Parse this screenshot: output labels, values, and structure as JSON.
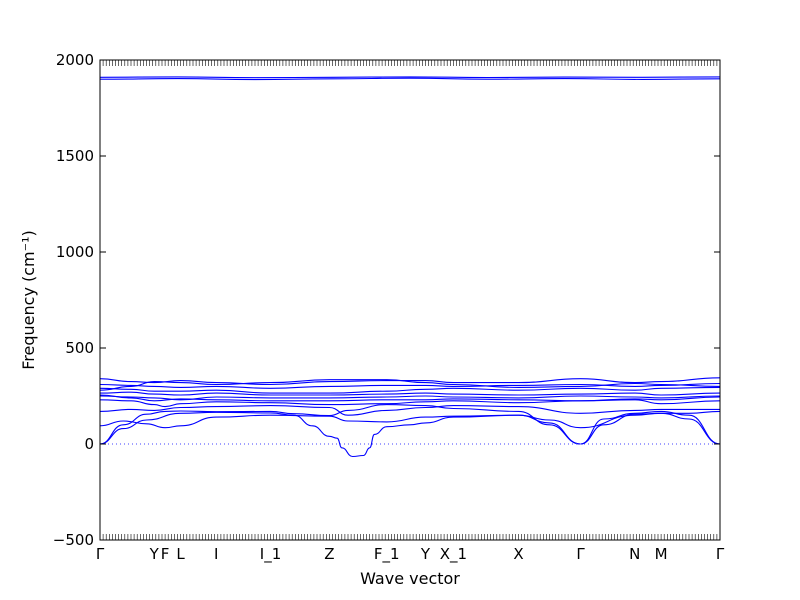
{
  "chart_data": {
    "type": "line",
    "title": "",
    "xlabel": "Wave vector",
    "ylabel": "Frequency (cm⁻¹)",
    "ylim": [
      -500,
      2000
    ],
    "yticks": [
      -500,
      0,
      500,
      1000,
      1500,
      2000
    ],
    "ytick_labels": [
      "−500",
      "0",
      "500",
      "1000",
      "1500",
      "2000"
    ],
    "grid": false,
    "legend": "none",
    "line_color": "#0000ff",
    "zero_line_color": "#4040ff",
    "x_range": [
      0,
      40
    ],
    "high_points": [
      {
        "label": "Γ",
        "x": 0
      },
      {
        "label": "Y",
        "x": 3.5
      },
      {
        "label": "F",
        "x": 4.2
      },
      {
        "label": "L",
        "x": 5.2
      },
      {
        "label": "I",
        "x": 7.5
      },
      {
        "label": "I_1",
        "x": 11.0
      },
      {
        "label": "Z",
        "x": 14.8
      },
      {
        "label": "F_1",
        "x": 18.5
      },
      {
        "label": "Y",
        "x": 21.0
      },
      {
        "label": "X_1",
        "x": 22.8
      },
      {
        "label": "X",
        "x": 27.0
      },
      {
        "label": "Γ",
        "x": 31.0
      },
      {
        "label": "N",
        "x": 34.5
      },
      {
        "label": "M",
        "x": 36.2
      },
      {
        "label": "Γ",
        "x": 40.0
      }
    ],
    "series": [
      {
        "values": [
          [
            0,
            1910
          ],
          [
            5,
            1912
          ],
          [
            10,
            1908
          ],
          [
            15,
            1910
          ],
          [
            20,
            1912
          ],
          [
            25,
            1909
          ],
          [
            30,
            1911
          ],
          [
            35,
            1910
          ],
          [
            40,
            1912
          ]
        ]
      },
      {
        "values": [
          [
            0,
            1900
          ],
          [
            5,
            1903
          ],
          [
            10,
            1898
          ],
          [
            15,
            1902
          ],
          [
            20,
            1905
          ],
          [
            25,
            1900
          ],
          [
            30,
            1903
          ],
          [
            35,
            1899
          ],
          [
            40,
            1902
          ]
        ]
      },
      {
        "values": [
          [
            0,
            0
          ],
          [
            1.5,
            80
          ],
          [
            3,
            125
          ],
          [
            5.2,
            160
          ],
          [
            7.5,
            165
          ],
          [
            11,
            162
          ],
          [
            12.5,
            150
          ],
          [
            13.7,
            95
          ],
          [
            14.8,
            40
          ],
          [
            15.3,
            30
          ],
          [
            15.6,
            -20
          ],
          [
            16.3,
            -65
          ],
          [
            17.0,
            -60
          ],
          [
            17.4,
            -20
          ],
          [
            17.7,
            50
          ],
          [
            18.5,
            90
          ],
          [
            20,
            100
          ],
          [
            21,
            110
          ],
          [
            22.8,
            140
          ],
          [
            27,
            150
          ],
          [
            29,
            110
          ],
          [
            31,
            0
          ],
          [
            32.5,
            100
          ],
          [
            34.5,
            155
          ],
          [
            36.2,
            160
          ],
          [
            38,
            130
          ],
          [
            40,
            0
          ]
        ]
      },
      {
        "values": [
          [
            0,
            0
          ],
          [
            1.5,
            100
          ],
          [
            3,
            155
          ],
          [
            4.2,
            170
          ],
          [
            5.2,
            172
          ],
          [
            7.5,
            168
          ],
          [
            11,
            170
          ],
          [
            12.5,
            158
          ],
          [
            14.8,
            148
          ],
          [
            16,
            175
          ],
          [
            18.5,
            205
          ],
          [
            21,
            200
          ],
          [
            22.8,
            185
          ],
          [
            27,
            170
          ],
          [
            29,
            100
          ],
          [
            31,
            0
          ],
          [
            32.5,
            130
          ],
          [
            34.5,
            160
          ],
          [
            36.2,
            170
          ],
          [
            38,
            150
          ],
          [
            40,
            0
          ]
        ]
      },
      {
        "values": [
          [
            0,
            95
          ],
          [
            1.5,
            120
          ],
          [
            3,
            105
          ],
          [
            4.2,
            85
          ],
          [
            5.2,
            95
          ],
          [
            7.5,
            140
          ],
          [
            11,
            150
          ],
          [
            14.8,
            145
          ],
          [
            16,
            120
          ],
          [
            18.5,
            115
          ],
          [
            21,
            140
          ],
          [
            22.8,
            145
          ],
          [
            27,
            150
          ],
          [
            29,
            125
          ],
          [
            31,
            85
          ],
          [
            34.5,
            150
          ],
          [
            36.2,
            160
          ],
          [
            38,
            160
          ],
          [
            40,
            170
          ]
        ]
      },
      {
        "values": [
          [
            0,
            170
          ],
          [
            2,
            180
          ],
          [
            3.5,
            175
          ],
          [
            5.2,
            190
          ],
          [
            7.5,
            195
          ],
          [
            11,
            200
          ],
          [
            14.8,
            190
          ],
          [
            16,
            150
          ],
          [
            18.5,
            175
          ],
          [
            21,
            190
          ],
          [
            22.8,
            200
          ],
          [
            27,
            195
          ],
          [
            31,
            160
          ],
          [
            34.5,
            175
          ],
          [
            36.2,
            180
          ],
          [
            40,
            180
          ]
        ]
      },
      {
        "values": [
          [
            0,
            230
          ],
          [
            2,
            225
          ],
          [
            3.5,
            205
          ],
          [
            4.2,
            195
          ],
          [
            5.2,
            210
          ],
          [
            7.5,
            220
          ],
          [
            11,
            215
          ],
          [
            14.8,
            205
          ],
          [
            18.5,
            210
          ],
          [
            21,
            220
          ],
          [
            22.8,
            225
          ],
          [
            27,
            215
          ],
          [
            31,
            225
          ],
          [
            34.5,
            230
          ],
          [
            36.2,
            210
          ],
          [
            40,
            225
          ]
        ]
      },
      {
        "values": [
          [
            0,
            250
          ],
          [
            2,
            245
          ],
          [
            3.5,
            240
          ],
          [
            5.2,
            230
          ],
          [
            7.5,
            245
          ],
          [
            11,
            240
          ],
          [
            14.8,
            240
          ],
          [
            18.5,
            245
          ],
          [
            21,
            250
          ],
          [
            22.8,
            245
          ],
          [
            27,
            240
          ],
          [
            31,
            250
          ],
          [
            34.5,
            245
          ],
          [
            36.2,
            240
          ],
          [
            40,
            250
          ]
        ]
      },
      {
        "values": [
          [
            0,
            265
          ],
          [
            2,
            270
          ],
          [
            3.5,
            260
          ],
          [
            5.2,
            255
          ],
          [
            7.5,
            265
          ],
          [
            11,
            255
          ],
          [
            14.8,
            255
          ],
          [
            18.5,
            260
          ],
          [
            21,
            265
          ],
          [
            22.8,
            260
          ],
          [
            27,
            255
          ],
          [
            31,
            260
          ],
          [
            34.5,
            265
          ],
          [
            36.2,
            255
          ],
          [
            40,
            265
          ]
        ]
      },
      {
        "values": [
          [
            0,
            290
          ],
          [
            2,
            285
          ],
          [
            3.5,
            275
          ],
          [
            5.2,
            275
          ],
          [
            7.5,
            280
          ],
          [
            11,
            265
          ],
          [
            14.8,
            265
          ],
          [
            18.5,
            275
          ],
          [
            21,
            285
          ],
          [
            22.8,
            290
          ],
          [
            27,
            280
          ],
          [
            31,
            290
          ],
          [
            34.5,
            280
          ],
          [
            36.2,
            290
          ],
          [
            40,
            295
          ]
        ]
      },
      {
        "values": [
          [
            0,
            310
          ],
          [
            2,
            305
          ],
          [
            3.5,
            300
          ],
          [
            5.2,
            295
          ],
          [
            7.5,
            300
          ],
          [
            11,
            290
          ],
          [
            14.8,
            300
          ],
          [
            18.5,
            305
          ],
          [
            21,
            305
          ],
          [
            22.8,
            300
          ],
          [
            27,
            305
          ],
          [
            31,
            310
          ],
          [
            34.5,
            300
          ],
          [
            36.2,
            305
          ],
          [
            40,
            315
          ]
        ]
      },
      {
        "values": [
          [
            0,
            340
          ],
          [
            2,
            325
          ],
          [
            3.5,
            320
          ],
          [
            5.2,
            330
          ],
          [
            7.5,
            320
          ],
          [
            11,
            310
          ],
          [
            14.8,
            325
          ],
          [
            18.5,
            330
          ],
          [
            21,
            330
          ],
          [
            22.8,
            320
          ],
          [
            27,
            320
          ],
          [
            31,
            340
          ],
          [
            34.5,
            320
          ],
          [
            36.2,
            325
          ],
          [
            40,
            345
          ]
        ]
      },
      {
        "values": [
          [
            0,
            280
          ],
          [
            2,
            300
          ],
          [
            3.5,
            325
          ],
          [
            5.2,
            320
          ],
          [
            7.5,
            310
          ],
          [
            11,
            320
          ],
          [
            14.8,
            335
          ],
          [
            18.5,
            335
          ],
          [
            21,
            320
          ],
          [
            22.8,
            310
          ],
          [
            27,
            295
          ],
          [
            31,
            300
          ],
          [
            34.5,
            315
          ],
          [
            36.2,
            310
          ],
          [
            40,
            300
          ]
        ]
      },
      {
        "values": [
          [
            0,
            255
          ],
          [
            2,
            240
          ],
          [
            3.5,
            225
          ],
          [
            5.2,
            235
          ],
          [
            7.5,
            230
          ],
          [
            11,
            225
          ],
          [
            14.8,
            225
          ],
          [
            18.5,
            230
          ],
          [
            21,
            230
          ],
          [
            22.8,
            235
          ],
          [
            27,
            230
          ],
          [
            31,
            225
          ],
          [
            34.5,
            235
          ],
          [
            36.2,
            230
          ],
          [
            40,
            245
          ]
        ]
      }
    ]
  }
}
